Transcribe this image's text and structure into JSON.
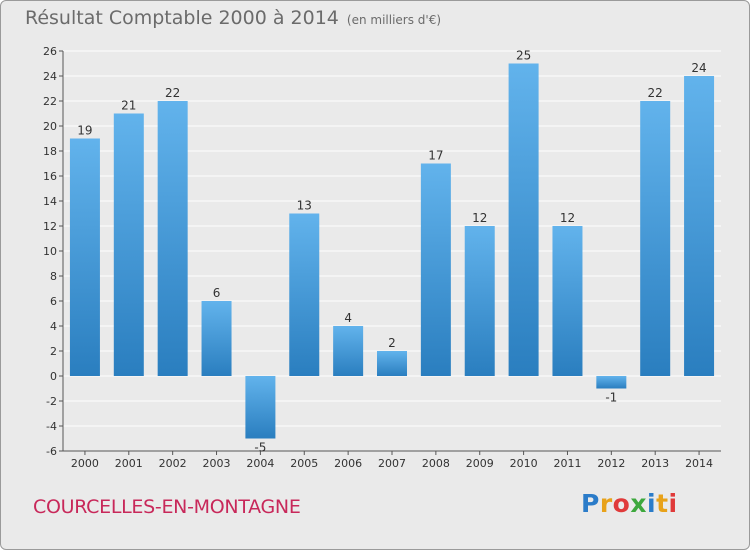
{
  "title": "Résultat Comptable 2000 à 2014",
  "subtitle": "(en milliers d'€)",
  "commune": "COURCELLES-EN-MONTAGNE",
  "logo": {
    "letters": [
      "P",
      "r",
      "o",
      "x",
      "i",
      "t",
      "i"
    ],
    "colors": [
      "#2b7cc9",
      "#e8a21a",
      "#e03a3a",
      "#3da83d",
      "#2b7cc9",
      "#e8a21a",
      "#e03a3a"
    ]
  },
  "colors": {
    "bar_light": "#62b3ec",
    "bar_dark": "#2a7ebf",
    "grid": "#ffffff",
    "commune": "#c8285a"
  },
  "chart_data": {
    "type": "bar",
    "categories": [
      "2000",
      "2001",
      "2002",
      "2003",
      "2004",
      "2005",
      "2006",
      "2007",
      "2008",
      "2009",
      "2010",
      "2011",
      "2012",
      "2013",
      "2014"
    ],
    "values": [
      19,
      21,
      22,
      6,
      -5,
      13,
      4,
      2,
      17,
      12,
      25,
      12,
      -1,
      22,
      24
    ],
    "value_labels": [
      "19",
      "21",
      "22",
      "6",
      "-5",
      "13",
      "4",
      "2",
      "17",
      "12",
      "25",
      "12",
      "-1",
      "22",
      "24"
    ],
    "ylim": [
      -6,
      26
    ],
    "yticks": [
      -6,
      -4,
      -2,
      0,
      2,
      4,
      6,
      8,
      10,
      12,
      14,
      16,
      18,
      20,
      22,
      24,
      26
    ],
    "ytick_labels": [
      "-6",
      "-4",
      "-2",
      "0",
      "2",
      "4",
      "6",
      "8",
      "10",
      "12",
      "14",
      "16",
      "18",
      "20",
      "22",
      "24",
      "26"
    ],
    "grid": true,
    "title": "Résultat Comptable 2000 à 2014",
    "xlabel": "",
    "ylabel": ""
  }
}
